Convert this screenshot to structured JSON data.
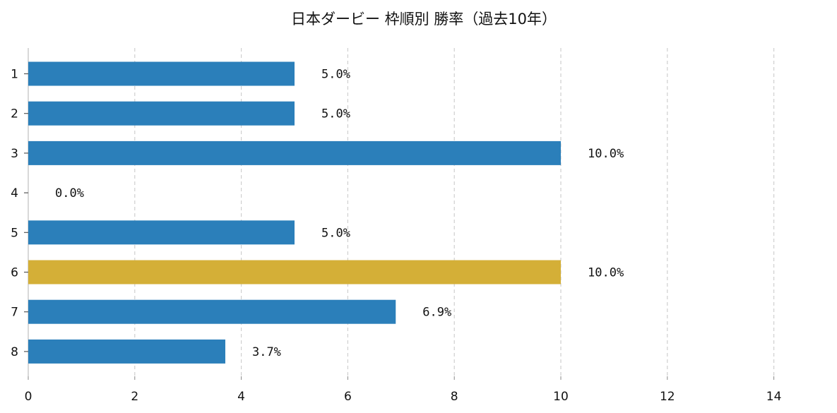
{
  "chart_data": {
    "type": "bar",
    "orientation": "horizontal",
    "title": "日本ダービー 枠順別 勝率（過去10年）",
    "xlabel": "",
    "ylabel": "",
    "categories": [
      "1",
      "2",
      "3",
      "4",
      "5",
      "6",
      "7",
      "8"
    ],
    "values": [
      5.0,
      5.0,
      10.0,
      0.0,
      5.0,
      10.0,
      6.9,
      3.7
    ],
    "value_labels": [
      "5.0%",
      "5.0%",
      "10.0%",
      "0.0%",
      "5.0%",
      "10.0%",
      "6.9%",
      "3.7%"
    ],
    "xlim": [
      0,
      15
    ],
    "xticks": [
      "0",
      "2",
      "4",
      "6",
      "8",
      "10",
      "12",
      "14"
    ],
    "grid": "vertical dashed",
    "legend": "none",
    "colors": {
      "default": "#2b7fba",
      "highlight": "#d4af37",
      "highlight_category": "6"
    }
  }
}
